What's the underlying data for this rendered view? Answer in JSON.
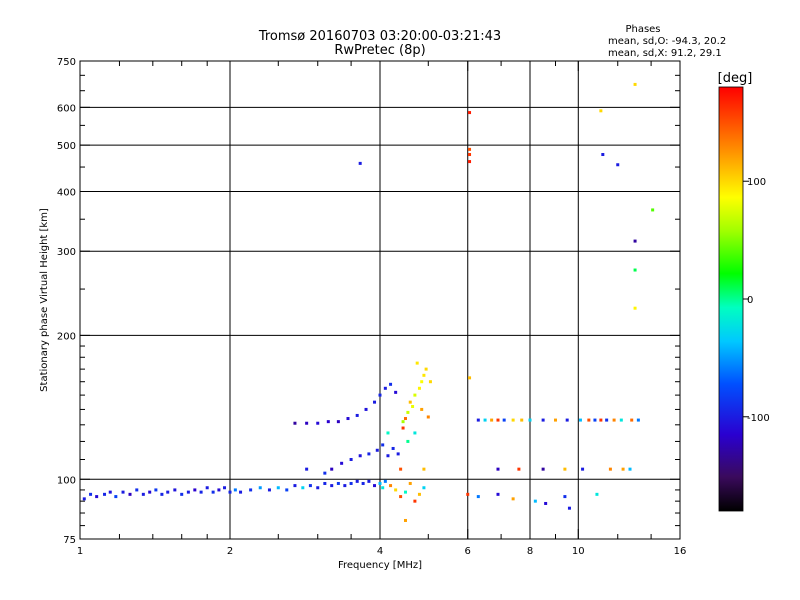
{
  "chart_data": {
    "type": "scatter",
    "title": "Tromsø 20160703 03:20:00-03:21:43",
    "subtitle": "RwPretec (8p)",
    "phases": {
      "title": "Phases",
      "line_o": "mean, sd,O: -94.3, 20.2",
      "line_x": "mean, sd,X:  91.2, 29.1"
    },
    "xlabel": "Frequency [MHz]",
    "ylabel": "Stationary phase Virtual Height [km]",
    "x_scale": "log",
    "y_scale": "log",
    "xlim": [
      1,
      16
    ],
    "ylim": [
      75,
      750
    ],
    "x_ticks": [
      {
        "v": 1,
        "label": "1"
      },
      {
        "v": 2,
        "label": "2"
      },
      {
        "v": 4,
        "label": "4"
      },
      {
        "v": 6,
        "label": "6"
      },
      {
        "v": 8,
        "label": "8"
      },
      {
        "v": 10,
        "label": "10"
      },
      {
        "v": 16,
        "label": "16"
      }
    ],
    "x_minor_ticks": [
      1.2,
      1.4,
      1.6,
      1.8,
      2.5,
      3,
      3.5,
      5,
      7,
      9,
      12,
      14
    ],
    "x_grid": [
      2,
      4,
      6,
      8,
      10
    ],
    "y_ticks": [
      {
        "v": 75,
        "label": "75"
      },
      {
        "v": 100,
        "label": "100"
      },
      {
        "v": 200,
        "label": "200"
      },
      {
        "v": 300,
        "label": "300"
      },
      {
        "v": 400,
        "label": "400"
      },
      {
        "v": 500,
        "label": "500"
      },
      {
        "v": 600,
        "label": "600"
      },
      {
        "v": 750,
        "label": "750"
      }
    ],
    "y_minor_ticks": [
      80,
      85,
      90,
      95,
      110,
      120,
      130,
      140,
      150,
      160,
      170,
      180,
      190,
      250,
      350,
      450,
      550,
      650,
      700
    ],
    "y_grid": [
      100,
      200,
      300,
      400,
      500,
      600
    ],
    "colorbar": {
      "label": "[deg]",
      "min": -180,
      "max": 180,
      "ticks": [
        {
          "v": 100,
          "label": "100"
        },
        {
          "v": 0,
          "label": "0"
        },
        {
          "v": -100,
          "label": "-100"
        }
      ]
    },
    "points": [
      [
        1.02,
        91,
        -100
      ],
      [
        1.05,
        93,
        -90
      ],
      [
        1.08,
        92,
        -110
      ],
      [
        1.12,
        93,
        -95
      ],
      [
        1.15,
        94,
        -105
      ],
      [
        1.18,
        92,
        -80
      ],
      [
        1.22,
        94,
        -100
      ],
      [
        1.26,
        93,
        -120
      ],
      [
        1.3,
        95,
        -90
      ],
      [
        1.34,
        93,
        -100
      ],
      [
        1.38,
        94,
        -110
      ],
      [
        1.42,
        95,
        -85
      ],
      [
        1.46,
        93,
        -95
      ],
      [
        1.5,
        94,
        -100
      ],
      [
        1.55,
        95,
        -105
      ],
      [
        1.6,
        93,
        -90
      ],
      [
        1.65,
        94,
        -100
      ],
      [
        1.7,
        95,
        -115
      ],
      [
        1.75,
        94,
        -95
      ],
      [
        1.8,
        96,
        -100
      ],
      [
        1.85,
        94,
        -90
      ],
      [
        1.9,
        95,
        -110
      ],
      [
        1.95,
        96,
        -100
      ],
      [
        2.0,
        94,
        -95
      ],
      [
        2.05,
        95,
        -60
      ],
      [
        2.1,
        94,
        -100
      ],
      [
        2.2,
        95,
        -90
      ],
      [
        2.3,
        96,
        -50
      ],
      [
        2.4,
        95,
        -100
      ],
      [
        2.5,
        96,
        -40
      ],
      [
        2.6,
        95,
        -80
      ],
      [
        2.7,
        97,
        -100
      ],
      [
        2.8,
        96,
        -30
      ],
      [
        2.9,
        97,
        -90
      ],
      [
        3.0,
        96,
        -100
      ],
      [
        3.1,
        98,
        -95
      ],
      [
        3.2,
        97,
        -100
      ],
      [
        3.3,
        98,
        -85
      ],
      [
        3.4,
        97,
        -100
      ],
      [
        3.5,
        98,
        -90
      ],
      [
        3.6,
        99,
        -100
      ],
      [
        3.7,
        98,
        -95
      ],
      [
        3.8,
        99,
        -100
      ],
      [
        3.9,
        97,
        -110
      ],
      [
        4.0,
        98,
        -40
      ],
      [
        4.05,
        96,
        -20
      ],
      [
        4.1,
        99,
        -60
      ],
      [
        4.2,
        97,
        130
      ],
      [
        4.3,
        95,
        100
      ],
      [
        4.4,
        92,
        150
      ],
      [
        4.5,
        94,
        -10
      ],
      [
        4.6,
        98,
        120
      ],
      [
        4.7,
        90,
        160
      ],
      [
        4.8,
        93,
        110
      ],
      [
        4.9,
        96,
        -30
      ],
      [
        4.5,
        82,
        120
      ],
      [
        2.7,
        131,
        -130
      ],
      [
        2.85,
        131,
        -120
      ],
      [
        3.0,
        131,
        -110
      ],
      [
        3.15,
        132,
        -115
      ],
      [
        3.3,
        132,
        -120
      ],
      [
        3.45,
        134,
        -110
      ],
      [
        3.6,
        136,
        -100
      ],
      [
        3.75,
        140,
        -105
      ],
      [
        3.9,
        145,
        -100
      ],
      [
        4.0,
        150,
        -95
      ],
      [
        4.1,
        155,
        -100
      ],
      [
        4.2,
        158,
        -90
      ],
      [
        4.3,
        152,
        -110
      ],
      [
        3.2,
        105,
        -120
      ],
      [
        3.35,
        108,
        -110
      ],
      [
        3.5,
        110,
        -100
      ],
      [
        3.65,
        112,
        -105
      ],
      [
        3.8,
        113,
        -95
      ],
      [
        3.95,
        115,
        -100
      ],
      [
        4.05,
        118,
        -90
      ],
      [
        4.15,
        112,
        -100
      ],
      [
        4.25,
        116,
        -95
      ],
      [
        4.35,
        113,
        -100
      ],
      [
        2.85,
        105,
        -100
      ],
      [
        3.1,
        103,
        -90
      ],
      [
        4.45,
        132,
        60
      ],
      [
        4.55,
        138,
        70
      ],
      [
        4.65,
        142,
        80
      ],
      [
        4.7,
        150,
        75
      ],
      [
        4.8,
        155,
        90
      ],
      [
        4.85,
        160,
        85
      ],
      [
        4.9,
        165,
        95
      ],
      [
        4.95,
        170,
        100
      ],
      [
        4.75,
        175,
        95
      ],
      [
        4.6,
        145,
        110
      ],
      [
        4.85,
        140,
        120
      ],
      [
        5.0,
        135,
        130
      ],
      [
        5.05,
        160,
        100
      ],
      [
        4.45,
        128,
        160
      ],
      [
        4.5,
        134,
        140
      ],
      [
        4.55,
        120,
        0
      ],
      [
        4.7,
        125,
        -20
      ],
      [
        4.15,
        125,
        -10
      ],
      [
        4.4,
        105,
        150
      ],
      [
        4.9,
        105,
        110
      ],
      [
        6.05,
        163,
        110
      ],
      [
        6.05,
        585,
        170
      ],
      [
        6.05,
        490,
        150
      ],
      [
        6.05,
        478,
        160
      ],
      [
        6.05,
        462,
        170
      ],
      [
        3.65,
        458,
        -100
      ],
      [
        6.3,
        133,
        -100
      ],
      [
        6.5,
        133,
        -30
      ],
      [
        6.7,
        133,
        120
      ],
      [
        6.9,
        133,
        160
      ],
      [
        7.1,
        133,
        -80
      ],
      [
        7.4,
        133,
        100
      ],
      [
        7.7,
        133,
        110
      ],
      [
        8.0,
        133,
        -30
      ],
      [
        8.5,
        133,
        -100
      ],
      [
        9.0,
        133,
        120
      ],
      [
        9.5,
        133,
        -100
      ],
      [
        10.1,
        133,
        -40
      ],
      [
        10.5,
        133,
        150
      ],
      [
        10.8,
        133,
        -80
      ],
      [
        11.1,
        133,
        160
      ],
      [
        11.4,
        133,
        -90
      ],
      [
        11.8,
        133,
        130
      ],
      [
        12.2,
        133,
        -20
      ],
      [
        12.8,
        133,
        140
      ],
      [
        13.2,
        133,
        -60
      ],
      [
        6.9,
        105,
        -120
      ],
      [
        7.6,
        105,
        160
      ],
      [
        8.5,
        105,
        -130
      ],
      [
        9.4,
        105,
        110
      ],
      [
        10.2,
        105,
        -100
      ],
      [
        11.6,
        105,
        130
      ],
      [
        12.3,
        105,
        120
      ],
      [
        12.7,
        105,
        -40
      ],
      [
        6.0,
        93,
        160
      ],
      [
        6.3,
        92,
        -60
      ],
      [
        6.9,
        93,
        -110
      ],
      [
        7.4,
        91,
        120
      ],
      [
        8.2,
        90,
        -40
      ],
      [
        8.6,
        89,
        -110
      ],
      [
        9.4,
        92,
        -90
      ],
      [
        9.6,
        87,
        -100
      ],
      [
        10.9,
        93,
        -20
      ],
      [
        12.0,
        455,
        -100
      ],
      [
        11.2,
        478,
        -100
      ],
      [
        11.1,
        590,
        100
      ],
      [
        13.0,
        670,
        100
      ],
      [
        13.0,
        315,
        -130
      ],
      [
        13.0,
        274,
        10
      ],
      [
        13.0,
        228,
        90
      ],
      [
        14.1,
        366,
        40
      ]
    ]
  }
}
